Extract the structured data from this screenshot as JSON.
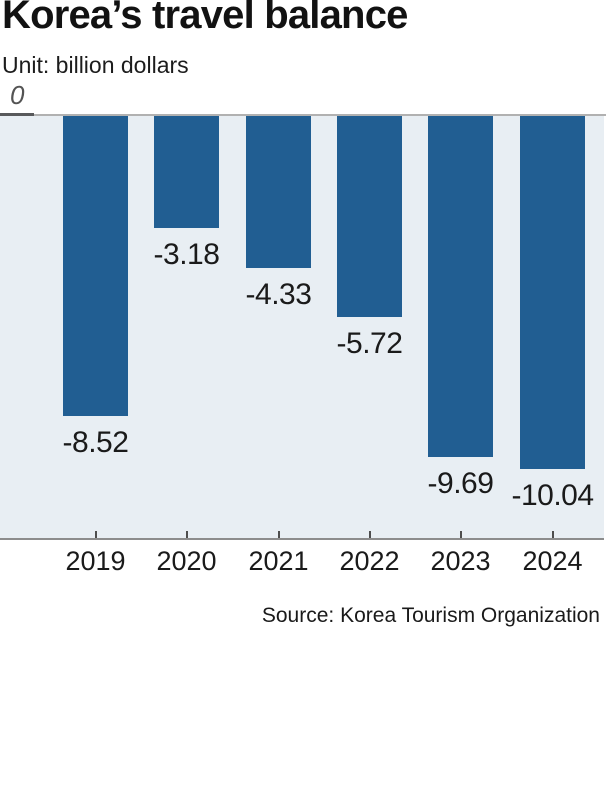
{
  "header": {
    "title": "Korea’s travel balance",
    "unit_label": "Unit: billion dollars"
  },
  "axis": {
    "zero_label": "0"
  },
  "chart_data": {
    "type": "bar",
    "title": "Korea’s travel balance",
    "unit": "billion dollars",
    "categories": [
      "2019",
      "2020",
      "2021",
      "2022",
      "2023",
      "2024"
    ],
    "values": [
      -8.52,
      -3.18,
      -4.33,
      -5.72,
      -9.69,
      -10.04
    ],
    "value_labels": [
      "-8.52",
      "-3.18",
      "-4.33",
      "-5.72",
      "-9.69",
      "-10.04"
    ],
    "xlabel": "",
    "ylabel": "",
    "ylim": [
      -12,
      0
    ],
    "grid": false,
    "legend": "none",
    "orientation": "vertical-negative",
    "bar_color": "#215e92",
    "plot_background": "#e8eef3"
  },
  "source": {
    "text": "Source: Korea Tourism Organization"
  }
}
